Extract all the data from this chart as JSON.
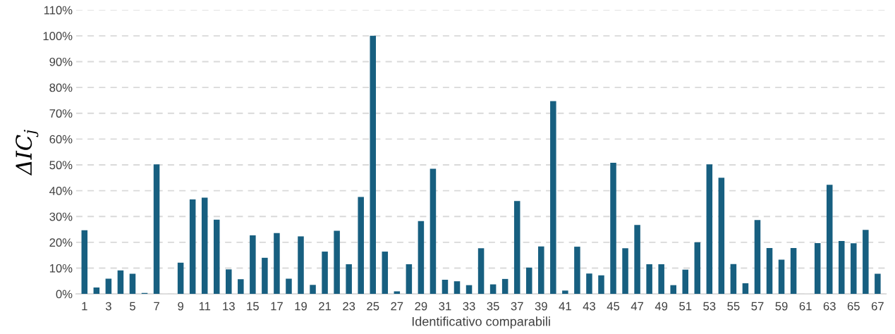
{
  "chart_data": {
    "type": "bar",
    "xlabel": "Identificativo comparabili",
    "ylabel": "ΔIC$_{j}$",
    "categories": [
      "1",
      null,
      "3",
      null,
      "5",
      null,
      "7",
      null,
      "9",
      null,
      "11",
      null,
      "13",
      null,
      "15",
      null,
      "17",
      null,
      "19",
      null,
      "21",
      null,
      "23",
      null,
      "25",
      null,
      "27",
      null,
      "29",
      null,
      "31",
      null,
      "33",
      null,
      "35",
      null,
      "37",
      null,
      "39",
      null,
      "41",
      null,
      "43",
      null,
      "45",
      null,
      "47",
      null,
      "49",
      null,
      "51",
      null,
      "53",
      null,
      "55",
      null,
      "57",
      null,
      "59",
      null,
      "61",
      null,
      "63",
      null,
      "65",
      null,
      "67"
    ],
    "series": [
      {
        "color": "#175f80",
        "values": [
          24.7,
          2.5,
          5.9,
          9.1,
          7.8,
          0.4,
          50.2,
          0,
          12.1,
          36.6,
          37.3,
          28.8,
          9.5,
          5.7,
          22.7,
          14.0,
          23.6,
          5.9,
          22.3,
          3.5,
          16.4,
          24.5,
          11.5,
          37.6,
          100,
          16.4,
          1.0,
          11.5,
          28.2,
          48.5,
          5.5,
          4.9,
          3.4,
          17.7,
          3.7,
          5.8,
          36.0,
          10.2,
          18.4,
          74.7,
          1.3,
          18.3,
          7.9,
          7.2,
          50.8,
          17.7,
          26.7,
          11.5,
          11.5,
          3.4,
          9.4,
          20.0,
          50.2,
          45.0,
          11.6,
          4.1,
          28.6,
          17.8,
          13.3,
          17.8,
          0,
          19.7,
          42.3,
          20.5,
          19.6,
          24.8,
          7.8
        ]
      }
    ],
    "ylim": [
      0,
      110
    ],
    "yticks": [
      {
        "value": 0,
        "label": "0%"
      },
      {
        "value": 10,
        "label": "10%"
      },
      {
        "value": 20,
        "label": "20%"
      },
      {
        "value": 30,
        "label": "30%"
      },
      {
        "value": 40,
        "label": "40%"
      },
      {
        "value": 50,
        "label": "50%"
      },
      {
        "value": 60,
        "label": "60%"
      },
      {
        "value": 70,
        "label": "70%"
      },
      {
        "value": 80,
        "label": "80%"
      },
      {
        "value": 90,
        "label": "90%"
      },
      {
        "value": 100,
        "label": "100%"
      },
      {
        "value": 110,
        "label": "110%"
      }
    ],
    "grid": "y"
  }
}
